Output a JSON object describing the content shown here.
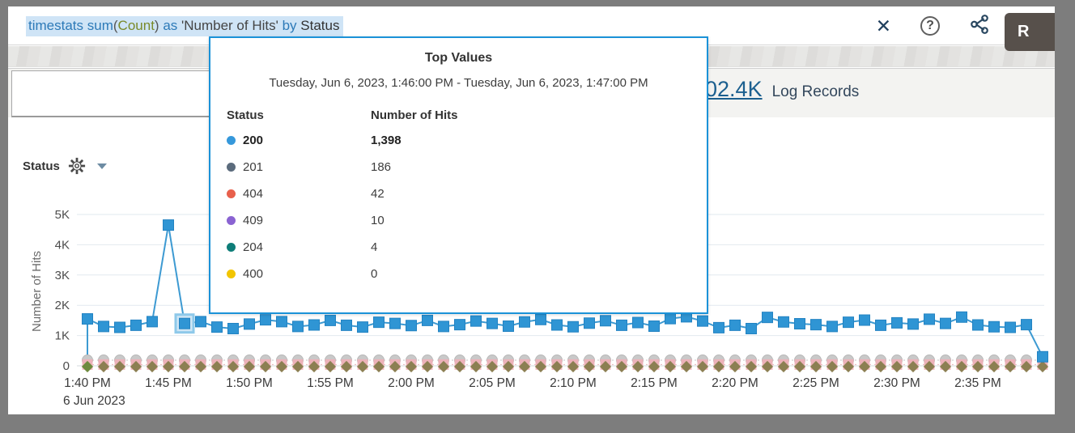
{
  "query_bar": {
    "tokens": [
      {
        "text": "timestats ",
        "color": "#2d7ab8"
      },
      {
        "text": "sum",
        "color": "#2d7ab8"
      },
      {
        "text": "(",
        "color": "#555555"
      },
      {
        "text": "Count",
        "color": "#7a8a2a"
      },
      {
        "text": ") ",
        "color": "#555555"
      },
      {
        "text": "as ",
        "color": "#2d7ab8"
      },
      {
        "text": "'Number of Hits' ",
        "color": "#454545"
      },
      {
        "text": "by ",
        "color": "#2d7ab8"
      },
      {
        "text": "Status",
        "color": "#333333"
      }
    ],
    "selection_color": "#cfe4f6",
    "close_icon": "✕",
    "help_icon": "?",
    "share_icon": "share-icon",
    "run_button_label": "R"
  },
  "records_summary": {
    "count": "102.4K",
    "label": "Log Records"
  },
  "chart_header": {
    "group_by_label": "Status",
    "gear_icon": "gear-icon",
    "caret_icon": "chevron-down-icon"
  },
  "tooltip": {
    "title": "Top Values",
    "time_range": "Tuesday, Jun 6, 2023, 1:46:00 PM - Tuesday, Jun 6, 2023, 1:47:00 PM",
    "columns": [
      "Status",
      "Number of Hits"
    ],
    "border_color": "#1b92d8",
    "rows": [
      {
        "status": "200",
        "color": "#3598db",
        "value": "1,398",
        "bold": true
      },
      {
        "status": "201",
        "color": "#5b6b7c",
        "value": "186",
        "bold": false
      },
      {
        "status": "404",
        "color": "#e8604c",
        "value": "42",
        "bold": false
      },
      {
        "status": "409",
        "color": "#8a63d2",
        "value": "10",
        "bold": false
      },
      {
        "status": "204",
        "color": "#0e7d78",
        "value": "4",
        "bold": false
      },
      {
        "status": "400",
        "color": "#f2c500",
        "value": "0",
        "bold": false
      }
    ]
  },
  "chart_data": {
    "type": "line",
    "title": "",
    "ylabel": "Number of Hits",
    "y_tick_labels": [
      "0",
      "1K",
      "2K",
      "3K",
      "4K",
      "5K"
    ],
    "ylim": [
      0,
      5000
    ],
    "x_tick_labels": [
      "1:40 PM",
      "1:45 PM",
      "1:50 PM",
      "1:55 PM",
      "2:00 PM",
      "2:05 PM",
      "2:10 PM",
      "2:15 PM",
      "2:20 PM",
      "2:25 PM",
      "2:30 PM",
      "2:35 PM"
    ],
    "x_date_label": "6 Jun 2023",
    "interval_minutes": 1,
    "grid": true,
    "selected_index": 6,
    "series": [
      {
        "name": "200",
        "color": "#2f95d4",
        "marker": "square",
        "values": [
          1550,
          1300,
          1270,
          1340,
          1460,
          4650,
          1398,
          1460,
          1280,
          1230,
          1380,
          1520,
          1460,
          1300,
          1350,
          1500,
          1340,
          1280,
          1440,
          1400,
          1330,
          1500,
          1300,
          1360,
          1480,
          1400,
          1310,
          1450,
          1530,
          1350,
          1290,
          1410,
          1490,
          1340,
          1430,
          1310,
          1560,
          1620,
          1480,
          1260,
          1340,
          1230,
          1600,
          1450,
          1390,
          1360,
          1300,
          1440,
          1510,
          1340,
          1420,
          1380,
          1540,
          1400,
          1610,
          1350,
          1290,
          1270,
          1360,
          300
        ]
      },
      {
        "name": "201",
        "color": "#c9c9c9",
        "marker": "circle",
        "constant_value": 186
      },
      {
        "name": "404",
        "color": "#f2aeb6",
        "marker": "square",
        "constant_value": 42
      },
      {
        "name": "409",
        "color": "#8a63d2",
        "marker": "none",
        "constant_value": 10
      },
      {
        "name": "204",
        "color": "#0e7d78",
        "marker": "none",
        "constant_value": 4
      },
      {
        "name": "400",
        "color": "#8c7f52",
        "marker": "diamond",
        "constant_value": 0
      }
    ]
  }
}
